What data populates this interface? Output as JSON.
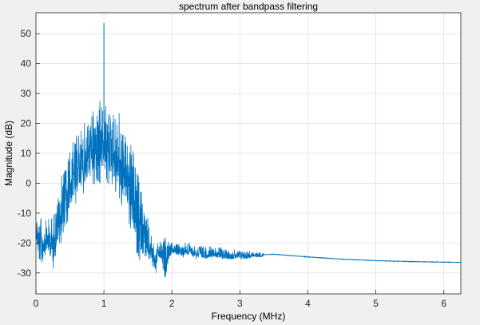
{
  "chart_data": {
    "type": "line",
    "title": "spectrum after bandpass filtering",
    "xlabel": "Frequency (MHz)",
    "ylabel": "Magnitude (dB)",
    "xlim": [
      0,
      6.25
    ],
    "ylim": [
      -37,
      57
    ],
    "grid": true,
    "x_ticks": [
      0,
      1,
      2,
      3,
      4,
      5,
      6
    ],
    "x_tick_labels": [
      "0",
      "1",
      "2",
      "3",
      "4",
      "5",
      "6"
    ],
    "y_ticks": [
      -30,
      -20,
      -10,
      0,
      10,
      20,
      30,
      40,
      50
    ],
    "y_tick_labels": [
      "-30",
      "-20",
      "-10",
      "0",
      "10",
      "20",
      "30",
      "40",
      "50"
    ],
    "series": [
      {
        "name": "spectrum",
        "color": "#0072bd",
        "peak": {
          "x": 1.0,
          "y": 53.5
        },
        "envelope": {
          "x": [
            0.0,
            0.05,
            0.1,
            0.15,
            0.2,
            0.25,
            0.3,
            0.35,
            0.4,
            0.45,
            0.5,
            0.55,
            0.6,
            0.65,
            0.7,
            0.75,
            0.8,
            0.85,
            0.9,
            0.95,
            1.0,
            1.05,
            1.1,
            1.15,
            1.2,
            1.25,
            1.3,
            1.35,
            1.4,
            1.45,
            1.5,
            1.55,
            1.6,
            1.65,
            1.7,
            1.75,
            1.8,
            1.85,
            1.9,
            1.95,
            2.0,
            2.1,
            2.2,
            2.3,
            2.4,
            2.5,
            2.6,
            2.7,
            2.8,
            2.9,
            3.0,
            3.1,
            3.2,
            3.3,
            3.5,
            4.0,
            4.5,
            5.0,
            5.5,
            6.0,
            6.25
          ],
          "upper": [
            -8,
            -10,
            -12,
            -12,
            -11,
            -9,
            -5,
            0,
            6,
            10,
            13,
            15,
            17,
            19,
            21,
            23,
            24,
            26,
            27,
            28,
            28,
            28,
            27,
            26,
            25,
            23,
            21,
            18,
            14,
            10,
            5,
            0,
            -6,
            -12,
            -17,
            -19,
            -20,
            -19,
            -17,
            -19,
            -20,
            -20,
            -19,
            -20,
            -20,
            -21,
            -21,
            -21,
            -22,
            -22,
            -22,
            -22,
            -23,
            -23,
            -23.5,
            -24.5,
            -25.3,
            -25.8,
            -26.1,
            -26.3,
            -26.4
          ],
          "lower": [
            -20,
            -30,
            -27,
            -24,
            -26,
            -30,
            -24,
            -22,
            -18,
            -14,
            -12,
            -9,
            -7,
            -5,
            -4,
            -3,
            -2,
            -1,
            0,
            0,
            0,
            0,
            -1,
            -3,
            -5,
            -8,
            -10,
            -13,
            -17,
            -21,
            -25,
            -27,
            -28,
            -29,
            -27,
            -32,
            -26,
            -27,
            -35,
            -27,
            -24,
            -25,
            -25,
            -25,
            -26,
            -26,
            -25,
            -26,
            -26,
            -26,
            -26,
            -26,
            -25,
            -25,
            -24,
            -24.8,
            -25.5,
            -26.0,
            -26.3,
            -26.5,
            -26.6
          ]
        }
      }
    ]
  }
}
